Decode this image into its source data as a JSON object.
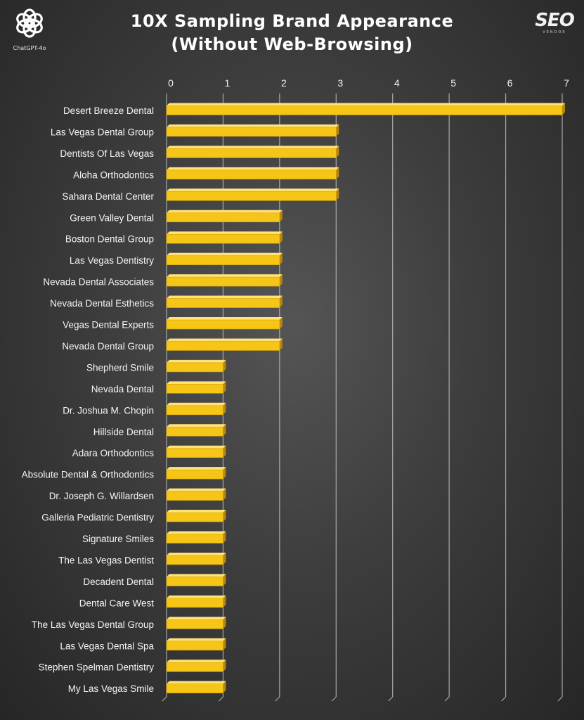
{
  "branding": {
    "left_logo_caption": "ChatGPT-4o",
    "left_logo_icon": "openai-knot-icon",
    "right_logo_text": "SEO",
    "right_logo_subtext": "VENDOR"
  },
  "colors": {
    "bar": "#f5c518",
    "bar_edge": "#b8860b",
    "grid": "#bdbdbd",
    "background": "#3a3a3a"
  },
  "chart_data": {
    "type": "bar",
    "orientation": "horizontal",
    "title": "10X Sampling Brand Appearance",
    "subtitle": "(Without Web-Browsing)",
    "xlabel": "",
    "ylabel": "",
    "xlim": [
      0,
      7
    ],
    "xticks": [
      "0",
      "1",
      "2",
      "3",
      "4",
      "5",
      "6",
      "7"
    ],
    "x_axis_position": "top",
    "grid": true,
    "legend": "none",
    "categories": [
      "Desert Breeze Dental",
      "Las Vegas Dental Group",
      "Dentists Of Las Vegas",
      "Aloha Orthodontics",
      "Sahara Dental Center",
      "Green Valley Dental",
      "Boston Dental Group",
      "Las Vegas Dentistry",
      "Nevada Dental Associates",
      "Nevada Dental Esthetics",
      "Vegas Dental Experts",
      "Nevada Dental Group",
      "Shepherd Smile",
      "Nevada Dental",
      "Dr. Joshua M. Chopin",
      "Hillside Dental",
      "Adara Orthodontics",
      "Absolute Dental & Orthodontics",
      "Dr. Joseph G. Willardsen",
      "Galleria Pediatric Dentistry",
      "Signature Smiles",
      "The Las Vegas Dentist",
      "Decadent Dental",
      "Dental Care West",
      "The Las Vegas Dental Group",
      "Las Vegas Dental Spa",
      "Stephen Spelman Dentistry",
      "My Las Vegas Smile"
    ],
    "values": [
      7,
      3,
      3,
      3,
      3,
      2,
      2,
      2,
      2,
      2,
      2,
      2,
      1,
      1,
      1,
      1,
      1,
      1,
      1,
      1,
      1,
      1,
      1,
      1,
      1,
      1,
      1,
      1
    ]
  }
}
